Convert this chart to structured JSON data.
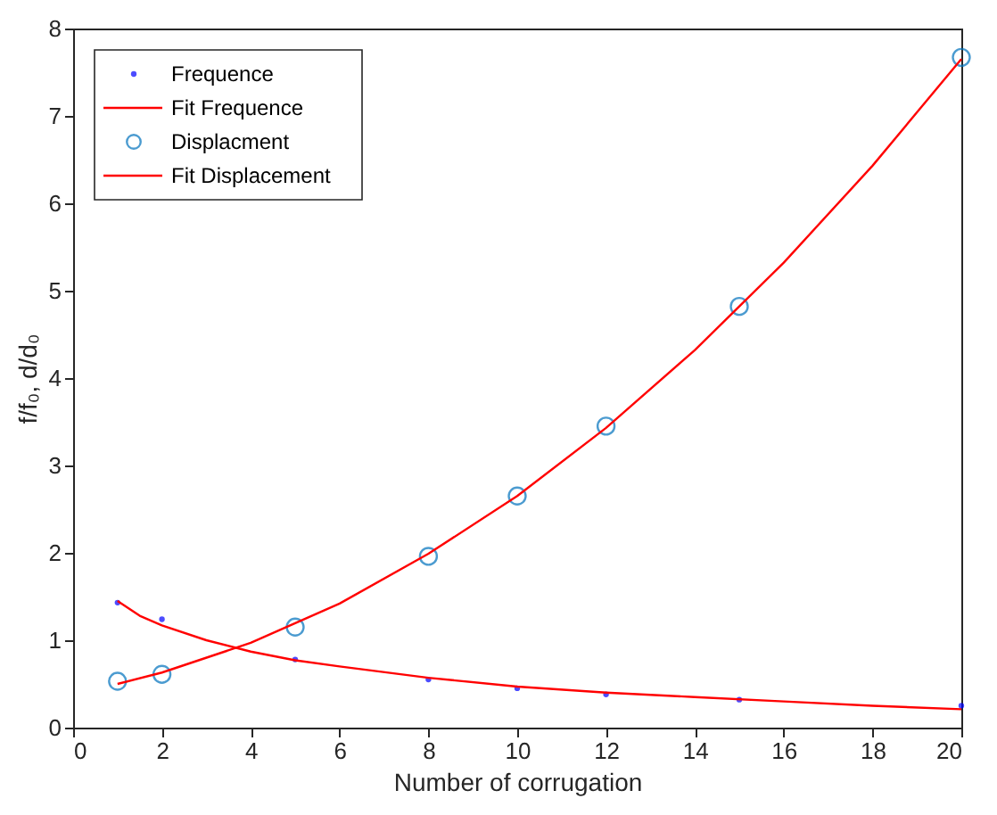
{
  "chart_data": {
    "type": "scatter",
    "xlabel": "Number of corrugation",
    "ylabel": "f/f₀, d/d₀",
    "xlim": [
      0,
      20
    ],
    "ylim": [
      0,
      8
    ],
    "xticks": [
      0,
      2,
      4,
      6,
      8,
      10,
      12,
      14,
      16,
      18,
      20
    ],
    "yticks": [
      0,
      1,
      2,
      3,
      4,
      5,
      6,
      7,
      8
    ],
    "grid": false,
    "legend": "top left",
    "series": [
      {
        "name": "Frequence",
        "marker": "point",
        "color": "#0000ff",
        "x": [
          1,
          2,
          5,
          8,
          10,
          12,
          15,
          20
        ],
        "values": [
          1.43,
          1.24,
          0.78,
          0.55,
          0.45,
          0.38,
          0.32,
          0.25
        ]
      },
      {
        "name": "Fit Frequence",
        "type": "line",
        "marker": "none",
        "color": "#ff0000",
        "x": [
          1,
          1.5,
          2,
          3,
          4,
          5,
          6,
          8,
          10,
          12,
          14,
          16,
          18,
          20
        ],
        "values": [
          1.45,
          1.28,
          1.17,
          1.0,
          0.87,
          0.77,
          0.7,
          0.57,
          0.47,
          0.4,
          0.35,
          0.3,
          0.25,
          0.21
        ]
      },
      {
        "name": "Displacment",
        "marker": "circle",
        "color": "#0072bd",
        "x": [
          1,
          2,
          5,
          8,
          10,
          12,
          15,
          20
        ],
        "values": [
          0.53,
          0.61,
          1.15,
          1.96,
          2.65,
          3.45,
          4.82,
          7.67
        ]
      },
      {
        "name": "Fit Displacement",
        "type": "line",
        "marker": "none",
        "color": "#ff0000",
        "x": [
          1,
          2,
          4,
          6,
          8,
          10,
          12,
          14,
          16,
          18,
          20
        ],
        "values": [
          0.5,
          0.63,
          0.97,
          1.42,
          1.99,
          2.65,
          3.43,
          4.32,
          5.32,
          6.43,
          7.65
        ]
      }
    ]
  }
}
